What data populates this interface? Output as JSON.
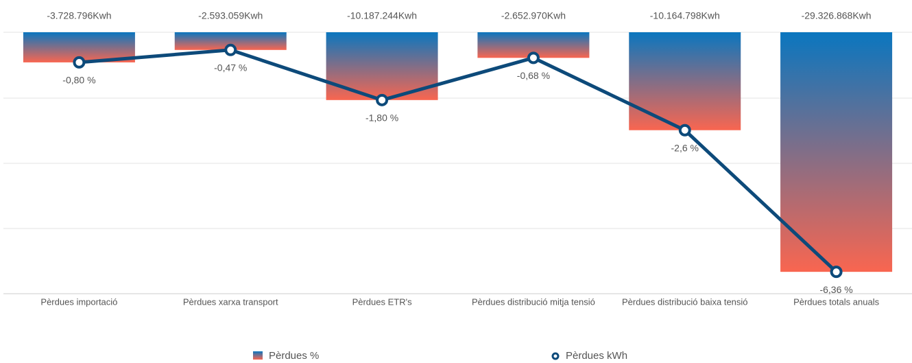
{
  "chart_data": {
    "type": "bar-line",
    "categories": [
      "Pèrdues importació",
      "Pèrdues xarxa transport",
      "Pèrdues ETR's",
      "Pèrdues distribució mitja tensió",
      "Pèrdues distribució baixa tensió",
      "Pèrdues totals anuals"
    ],
    "annotations": [
      "-3.728.796Kwh",
      "-2.593.059Kwh",
      "-10.187.244Kwh",
      "-2.652.970Kwh",
      "-10.164.798Kwh",
      "-29.326.868Kwh"
    ],
    "series": [
      {
        "name": "Pèrdues %",
        "type": "bar",
        "color": [
          "#0a76bf",
          "#f96650"
        ],
        "values": [
          -0.8,
          -0.47,
          -1.8,
          -0.68,
          -2.6,
          -6.36
        ]
      },
      {
        "name": "Pèrdues kWh",
        "type": "line",
        "color": "#0d4a7a",
        "values": [
          -0.8,
          -0.47,
          -1.8,
          -0.68,
          -2.6,
          -6.36
        ],
        "value_labels": [
          "-0,80 %",
          "-0,47 %",
          "-1,80 %",
          "-0,68 %",
          "-2,6 %",
          "-6,36 %"
        ]
      }
    ],
    "ylim": [
      -6.94,
      0
    ],
    "legend": "bottom"
  }
}
